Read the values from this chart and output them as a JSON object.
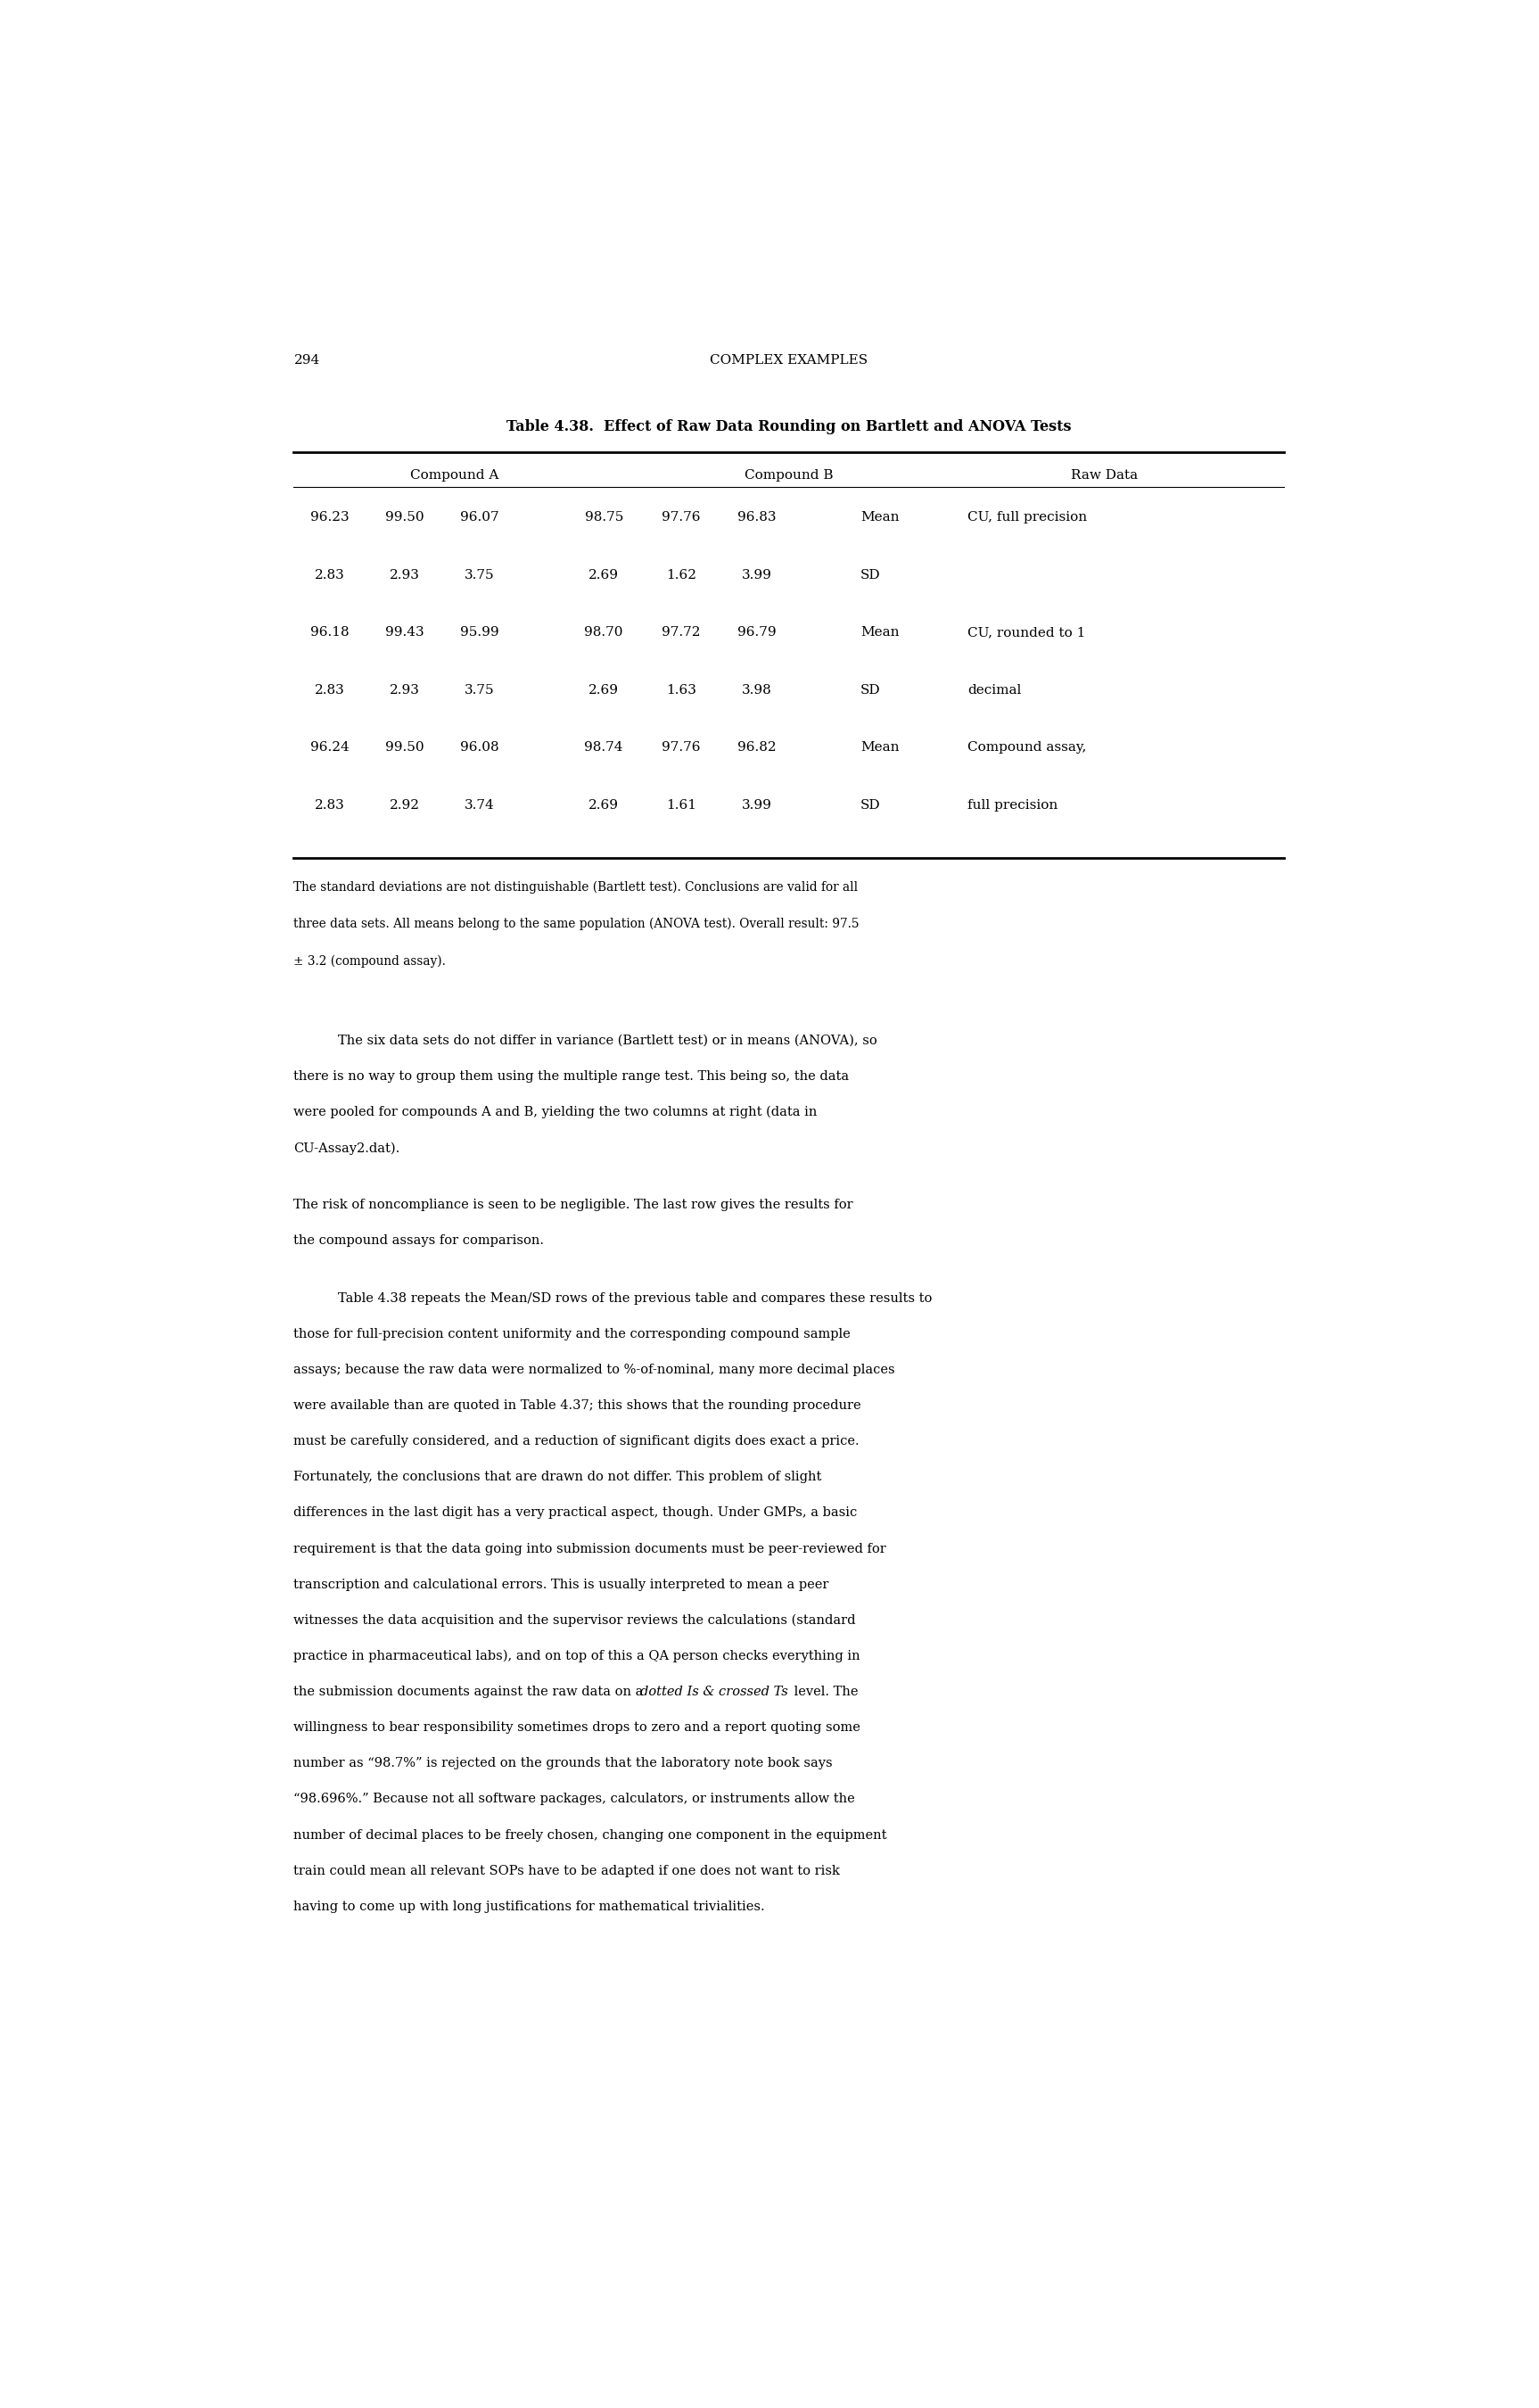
{
  "page_number": "294",
  "page_header": "COMPLEX EXAMPLES",
  "table_title": "Table 4.38.  Effect of Raw Data Rounding on Bartlett and ANOVA Tests",
  "col_headers": [
    "Compound A",
    "Compound B",
    "Raw Data"
  ],
  "table_rows": [
    [
      "96.23",
      "99.50",
      "96.07",
      "98.75",
      "97.76",
      "96.83",
      "Mean",
      "CU, full precision"
    ],
    [
      "2.83",
      "2.93",
      "3.75",
      "2.69",
      "1.62",
      "3.99",
      "SD",
      ""
    ],
    [
      "96.18",
      "99.43",
      "95.99",
      "98.70",
      "97.72",
      "96.79",
      "Mean",
      "CU, rounded to 1"
    ],
    [
      "2.83",
      "2.93",
      "3.75",
      "2.69",
      "1.63",
      "3.98",
      "SD",
      "decimal"
    ],
    [
      "96.24",
      "99.50",
      "96.08",
      "98.74",
      "97.76",
      "96.82",
      "Mean",
      "Compound assay,"
    ],
    [
      "2.83",
      "2.92",
      "3.74",
      "2.69",
      "1.61",
      "3.99",
      "SD",
      "full precision"
    ]
  ],
  "table_footnote": "The standard deviations are not distinguishable (Bartlett test). Conclusions are valid for all\nthree data sets. All means belong to the same population (ANOVA test). Overall result: 97.5\n± 3.2 (compound assay).",
  "body_paragraphs": [
    {
      "indent": true,
      "text": "The six data sets do not differ in variance (Bartlett test) or in means (ANOVA), so there is no way to group them using the multiple range test. This being so, the data were pooled for compounds A and B, yielding the two columns at right (data in CU-Assay2.dat).",
      "italic_phrases": []
    },
    {
      "indent": false,
      "text": "The risk of noncompliance is seen to be negligible. The last row gives the results for the compound assays for comparison.",
      "italic_phrases": []
    },
    {
      "indent": true,
      "text": "Table 4.38 repeats the Mean/SD rows of the previous table and compares these results to those for full-precision content uniformity and the corresponding compound sample assays; because the raw data were normalized to %-of-nominal, many more decimal places were available than are quoted in Table 4.37; this shows that the rounding procedure must be carefully considered, and a reduction of significant digits does exact a price. Fortunately, the conclusions that are drawn do not differ. This problem of slight differences in the last digit has a very practical aspect, though. Under GMPs, a basic requirement is that the data going into submission documents must be peer-reviewed for transcription and calculational errors. This is usually interpreted to mean a peer witnesses the data acquisition and the supervisor reviews the calculations (standard practice in pharmaceutical labs), and on top of this a QA person checks everything in the submission documents against the raw data on a dotted Is & crossed Ts level. The willingness to bear responsibility sometimes drops to zero and a report quoting some number as “98.7%” is rejected on the grounds that the laboratory note book says “98.696%.” Because not all software packages, calculators, or instruments allow the number of decimal places to be freely chosen, changing one component in the equipment train could mean all relevant SOPs have to be adapted if one does not want to risk having to come up with long justifications for mathematical trivialities.",
      "italic_phrases": [
        "dotted Is & crossed Ts"
      ]
    }
  ],
  "bg_color": "#ffffff",
  "text_color": "#000000"
}
